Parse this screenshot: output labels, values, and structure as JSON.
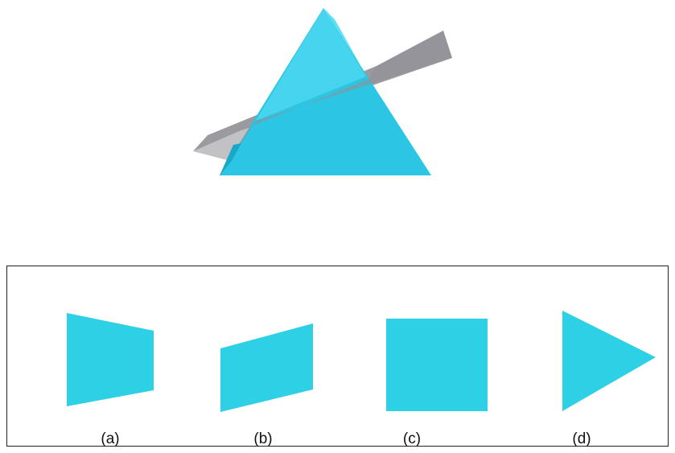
{
  "colors": {
    "prism_main": "#2cc6e4",
    "prism_shadow": "#1aa7c8",
    "prism_highlight": "#5ee0f5",
    "plane": "#8f8f95",
    "option_fill": "#2ed0e6",
    "panel_border": "#222222"
  },
  "figure": {
    "solid": "triangular-prism",
    "cutting_plane": "gray-plane-slanted"
  },
  "options": [
    {
      "label": "(a)",
      "shape": "trapezoid"
    },
    {
      "label": "(b)",
      "shape": "parallelogram"
    },
    {
      "label": "(c)",
      "shape": "square"
    },
    {
      "label": "(d)",
      "shape": "triangle"
    }
  ]
}
